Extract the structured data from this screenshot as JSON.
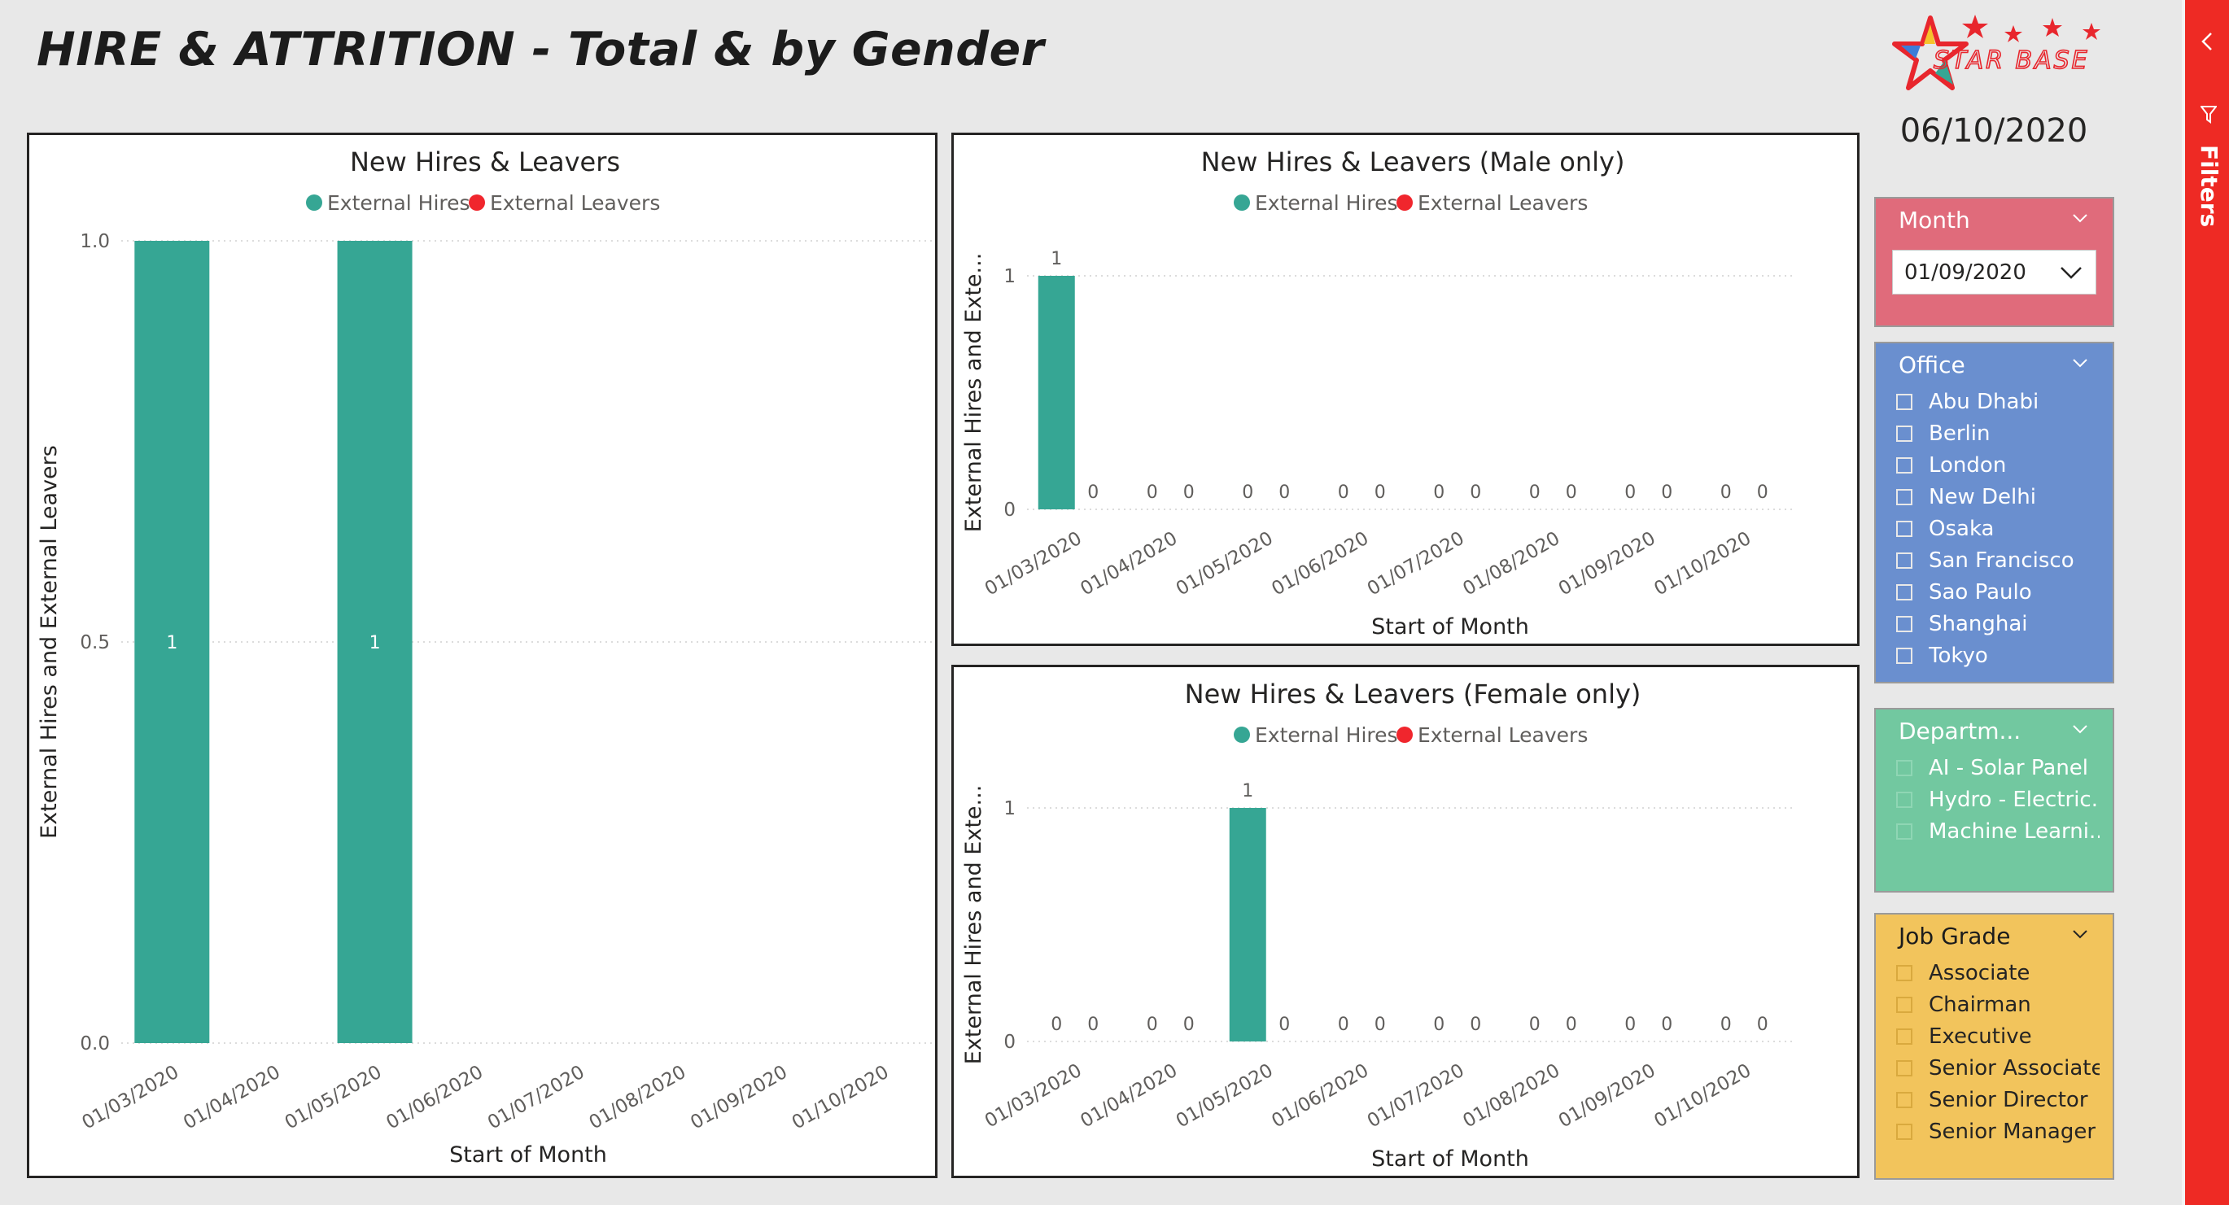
{
  "page": {
    "title": "HIRE & ATTRITION - Total & by Gender",
    "logo_text": "STAR BASE",
    "date": "06/10/2020"
  },
  "colors": {
    "hires": "#36a694",
    "leavers": "#f0262d",
    "month_slicer": "#e06b7b",
    "office_slicer": "#6a8fcf",
    "department_slicer": "#72c8a0",
    "job_grade_slicer": "#f2c45c",
    "filters_pane": "#ee2a24"
  },
  "chart_data": [
    {
      "type": "bar",
      "title": "New Hires & Leavers",
      "xlabel": "Start of Month",
      "ylabel": "External Hires and External Leavers",
      "categories": [
        "01/03/2020",
        "01/04/2020",
        "01/05/2020",
        "01/06/2020",
        "01/07/2020",
        "01/08/2020",
        "01/09/2020",
        "01/10/2020"
      ],
      "series": [
        {
          "name": "External Hires",
          "values": [
            1,
            0,
            1,
            0,
            0,
            0,
            0,
            0
          ]
        },
        {
          "name": "External Leavers",
          "values": [
            0,
            0,
            0,
            0,
            0,
            0,
            0,
            0
          ]
        }
      ],
      "ylim": [
        0,
        1
      ],
      "yticks": [
        "0.0",
        "0.5",
        "1.0"
      ],
      "data_labels": [
        "1",
        "",
        "1",
        "",
        "",
        "",
        "",
        ""
      ],
      "grid": true,
      "legend": "top-center"
    },
    {
      "type": "bar",
      "title": "New Hires & Leavers (Male only)",
      "xlabel": "Start of Month",
      "ylabel": "External Hires and Exte...",
      "categories": [
        "01/03/2020",
        "01/04/2020",
        "01/05/2020",
        "01/06/2020",
        "01/07/2020",
        "01/08/2020",
        "01/09/2020",
        "01/10/2020"
      ],
      "series": [
        {
          "name": "External Hires",
          "values": [
            1,
            0,
            0,
            0,
            0,
            0,
            0,
            0
          ]
        },
        {
          "name": "External Leavers",
          "values": [
            0,
            0,
            0,
            0,
            0,
            0,
            0,
            0
          ]
        }
      ],
      "ylim": [
        0,
        1
      ],
      "yticks": [
        "0",
        "1"
      ],
      "grid": true,
      "legend": "top-center"
    },
    {
      "type": "bar",
      "title": "New Hires & Leavers (Female only)",
      "xlabel": "Start of Month",
      "ylabel": "External Hires and Exte...",
      "categories": [
        "01/03/2020",
        "01/04/2020",
        "01/05/2020",
        "01/06/2020",
        "01/07/2020",
        "01/08/2020",
        "01/09/2020",
        "01/10/2020"
      ],
      "series": [
        {
          "name": "External Hires",
          "values": [
            0,
            0,
            1,
            0,
            0,
            0,
            0,
            0
          ]
        },
        {
          "name": "External Leavers",
          "values": [
            0,
            0,
            0,
            0,
            0,
            0,
            0,
            0
          ]
        }
      ],
      "ylim": [
        0,
        1
      ],
      "yticks": [
        "0",
        "1"
      ],
      "grid": true,
      "legend": "top-center"
    }
  ],
  "slicers": {
    "month": {
      "title": "Month",
      "value": "01/09/2020"
    },
    "office": {
      "title": "Office",
      "items": [
        "Abu Dhabi",
        "Berlin",
        "London",
        "New Delhi",
        "Osaka",
        "San Francisco",
        "Sao Paulo",
        "Shanghai",
        "Tokyo"
      ]
    },
    "department": {
      "title": "Departm...",
      "items": [
        "AI - Solar Panel",
        "Hydro - Electric...",
        "Machine Learni..."
      ]
    },
    "job_grade": {
      "title": "Job Grade",
      "items": [
        "Associate",
        "Chairman",
        "Executive",
        "Senior Associate",
        "Senior Director",
        "Senior Manager"
      ]
    }
  },
  "filters_pane": {
    "label": "Filters"
  },
  "icons": {
    "slicer_expand": "chevron-down-icon",
    "filters_collapse": "chevron-left-icon",
    "filters": "funnel-icon"
  }
}
